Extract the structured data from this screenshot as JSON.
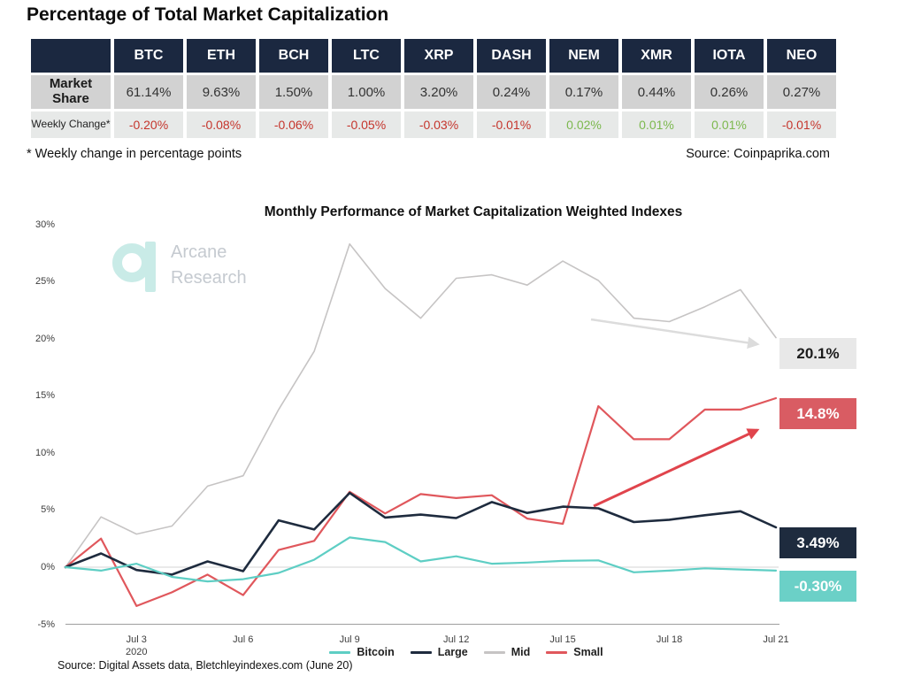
{
  "page": {
    "title": "Percentage of Total Market Capitalization",
    "footnote": "* Weekly change in percentage points",
    "table_source": "Source: Coinpaprika.com",
    "chart_source": "Source: Digital Assets data, Bletchleyindexes.com (June 20)"
  },
  "watermark": {
    "line1": "Arcane",
    "line2": "Research"
  },
  "table": {
    "columns": [
      "BTC",
      "ETH",
      "BCH",
      "LTC",
      "XRP",
      "DASH",
      "NEM",
      "XMR",
      "IOTA",
      "NEO"
    ],
    "rows": [
      {
        "label": "Market Share",
        "values": [
          "61.14%",
          "9.63%",
          "1.50%",
          "1.00%",
          "3.20%",
          "0.24%",
          "0.17%",
          "0.44%",
          "0.26%",
          "0.27%"
        ]
      },
      {
        "label": "Weekly Change*",
        "values": [
          "-0.20%",
          "-0.08%",
          "-0.06%",
          "-0.05%",
          "-0.03%",
          "-0.01%",
          "0.02%",
          "0.01%",
          "0.01%",
          "-0.01%"
        ]
      }
    ]
  },
  "chart_data": {
    "type": "line",
    "title": "Monthly Performance of Market Capitalization Weighted Indexes",
    "xlabel": "",
    "ylabel": "",
    "ylim": [
      -5,
      30
    ],
    "grid": "zero-line-only",
    "legend_position": "bottom",
    "x": [
      "Jul 1",
      "Jul 2",
      "Jul 3",
      "Jul 4",
      "Jul 5",
      "Jul 6",
      "Jul 7",
      "Jul 8",
      "Jul 9",
      "Jul 10",
      "Jul 11",
      "Jul 12",
      "Jul 13",
      "Jul 14",
      "Jul 15",
      "Jul 16",
      "Jul 17",
      "Jul 18",
      "Jul 19",
      "Jul 20",
      "Jul 21"
    ],
    "x_ticks": [
      {
        "label": "Jul 3",
        "sub": "2020",
        "day": 3
      },
      {
        "label": "Jul 6",
        "sub": "",
        "day": 6
      },
      {
        "label": "Jul 9",
        "sub": "",
        "day": 9
      },
      {
        "label": "Jul 12",
        "sub": "",
        "day": 12
      },
      {
        "label": "Jul 15",
        "sub": "",
        "day": 15
      },
      {
        "label": "Jul 18",
        "sub": "",
        "day": 18
      },
      {
        "label": "Jul 21",
        "sub": "",
        "day": 21
      }
    ],
    "y_ticks": [
      {
        "label": "30%",
        "value": 30
      },
      {
        "label": "25%",
        "value": 25
      },
      {
        "label": "20%",
        "value": 20
      },
      {
        "label": "15%",
        "value": 15
      },
      {
        "label": "10%",
        "value": 10
      },
      {
        "label": "5%",
        "value": 5
      },
      {
        "label": "0%",
        "value": 0
      },
      {
        "label": "-5%",
        "value": -5
      }
    ],
    "series": [
      {
        "name": "Mid",
        "color": "#c6c4c4",
        "width": 1.6,
        "values": [
          0,
          4.4,
          2.9,
          3.6,
          7.1,
          8.0,
          13.8,
          18.9,
          28.3,
          24.4,
          21.8,
          25.3,
          25.6,
          24.7,
          26.8,
          25.1,
          21.8,
          21.5,
          22.8,
          24.3,
          20.1
        ],
        "end_label": "20.1%",
        "tag_bg": "#e8e8e8",
        "tag_color": "#1c1c1c"
      },
      {
        "name": "Small",
        "color": "#e0575c",
        "width": 2.2,
        "values": [
          0,
          2.5,
          -3.4,
          -2.2,
          -0.65,
          -2.45,
          1.5,
          2.3,
          6.6,
          4.7,
          6.4,
          6.05,
          6.3,
          4.25,
          3.8,
          14.1,
          11.2,
          11.2,
          13.8,
          13.8,
          14.8
        ],
        "end_label": "14.8%",
        "tag_bg": "#d95c63",
        "tag_color": "#ffffff"
      },
      {
        "name": "Large",
        "color": "#1e2b3e",
        "width": 2.6,
        "values": [
          0,
          1.2,
          -0.25,
          -0.65,
          0.5,
          -0.35,
          4.1,
          3.3,
          6.5,
          4.35,
          4.6,
          4.3,
          5.7,
          4.75,
          5.3,
          5.15,
          3.95,
          4.15,
          4.55,
          4.9,
          3.49
        ],
        "end_label": "3.49%",
        "tag_bg": "#1e2b3e",
        "tag_color": "#ffffff"
      },
      {
        "name": "Bitcoin",
        "color": "#5ecec4",
        "width": 2.2,
        "values": [
          0,
          -0.3,
          0.3,
          -0.85,
          -1.25,
          -1.05,
          -0.5,
          0.65,
          2.6,
          2.2,
          0.5,
          0.95,
          0.3,
          0.4,
          0.55,
          0.6,
          -0.45,
          -0.3,
          -0.1,
          -0.2,
          -0.3
        ],
        "end_label": "-0.30%",
        "tag_bg": "#6bd0c7",
        "tag_color": "#ffffff"
      }
    ],
    "legend": [
      "Bitcoin",
      "Large",
      "Mid",
      "Small"
    ]
  }
}
